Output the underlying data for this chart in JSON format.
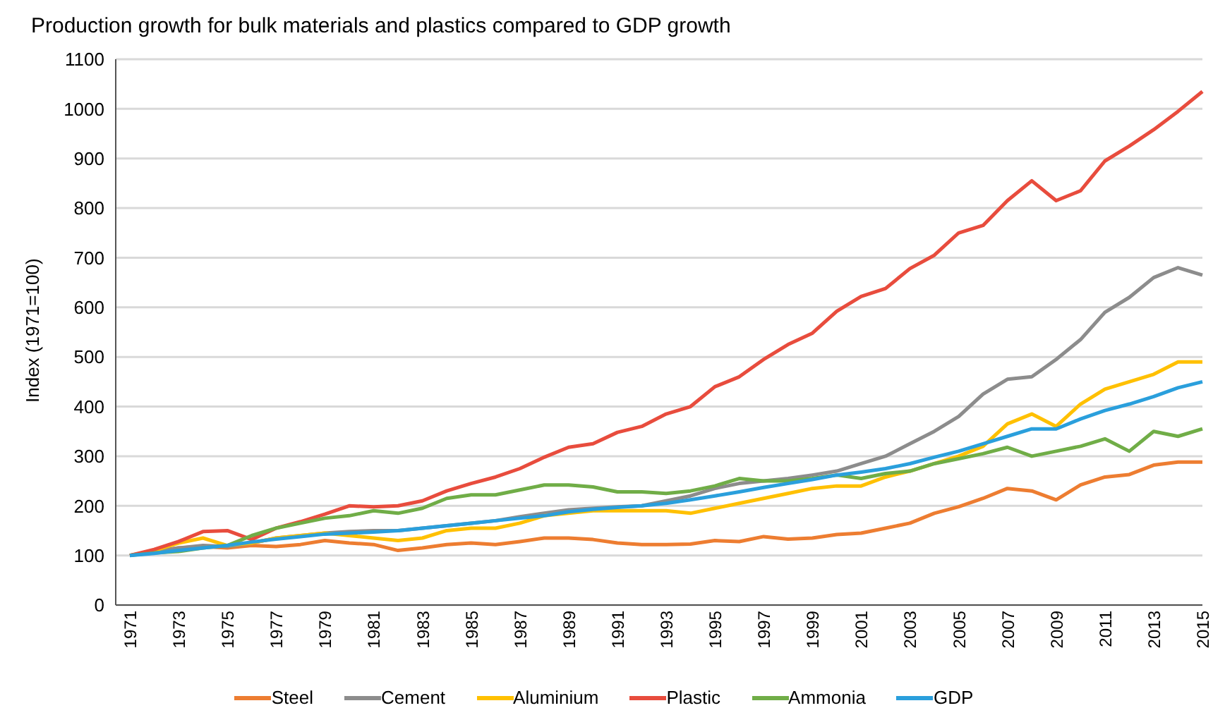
{
  "chart_data": {
    "type": "line",
    "title": "Production growth for bulk materials and plastics compared to GDP growth",
    "ylabel": "Index (1971=100)",
    "categories": [
      "1971",
      null,
      "1973",
      null,
      "1975",
      null,
      "1977",
      null,
      "1979",
      null,
      "1981",
      null,
      "1983",
      null,
      "1985",
      null,
      "1987",
      null,
      "1989",
      null,
      "1991",
      null,
      "1993",
      null,
      "1995",
      null,
      "1997",
      null,
      "1999",
      null,
      "2001",
      null,
      "2003",
      null,
      "2005",
      null,
      "2007",
      null,
      "2009",
      null,
      "2011",
      null,
      "2013",
      null,
      "2015"
    ],
    "ylim": [
      0,
      1100
    ],
    "yticks": [
      0,
      100,
      200,
      300,
      400,
      500,
      600,
      700,
      800,
      900,
      1000,
      1100
    ],
    "grid": "y",
    "legend": "bottom",
    "marker": "none",
    "line_style": "solid",
    "series": [
      {
        "name": "Steel",
        "color": "#ed7d31",
        "values": [
          100,
          108,
          115,
          118,
          115,
          120,
          118,
          122,
          130,
          125,
          122,
          110,
          115,
          122,
          125,
          122,
          128,
          135,
          135,
          132,
          125,
          122,
          122,
          123,
          130,
          128,
          138,
          133,
          135,
          142,
          145,
          155,
          165,
          185,
          198,
          215,
          235,
          230,
          212,
          242,
          258,
          263,
          282,
          288,
          288
        ]
      },
      {
        "name": "Cement",
        "color": "#8c8c8c",
        "values": [
          100,
          108,
          115,
          120,
          118,
          125,
          135,
          140,
          145,
          148,
          150,
          150,
          155,
          160,
          165,
          170,
          178,
          185,
          192,
          195,
          198,
          200,
          210,
          220,
          235,
          245,
          250,
          255,
          262,
          270,
          285,
          300,
          325,
          350,
          380,
          425,
          455,
          460,
          495,
          535,
          590,
          620,
          660,
          680,
          665
        ]
      },
      {
        "name": "Aluminium",
        "color": "#ffc000",
        "values": [
          100,
          110,
          125,
          135,
          120,
          125,
          135,
          140,
          145,
          140,
          135,
          130,
          135,
          150,
          155,
          155,
          165,
          180,
          185,
          190,
          190,
          190,
          190,
          185,
          195,
          205,
          215,
          225,
          235,
          240,
          240,
          258,
          270,
          285,
          300,
          320,
          365,
          385,
          360,
          405,
          435,
          450,
          465,
          490,
          490
        ]
      },
      {
        "name": "Plastic",
        "color": "#e84c3d",
        "values": [
          100,
          112,
          128,
          148,
          150,
          132,
          155,
          168,
          183,
          200,
          198,
          200,
          210,
          230,
          245,
          258,
          275,
          298,
          318,
          325,
          348,
          360,
          385,
          400,
          440,
          460,
          495,
          525,
          548,
          592,
          622,
          638,
          678,
          705,
          750,
          765,
          815,
          855,
          815,
          835,
          895,
          925,
          958,
          995,
          1035
        ]
      },
      {
        "name": "Ammonia",
        "color": "#70ad47",
        "values": [
          100,
          105,
          108,
          115,
          120,
          140,
          155,
          165,
          175,
          180,
          190,
          185,
          195,
          215,
          222,
          222,
          232,
          242,
          242,
          238,
          228,
          228,
          225,
          230,
          240,
          255,
          250,
          250,
          255,
          262,
          255,
          265,
          270,
          285,
          295,
          305,
          318,
          300,
          310,
          320,
          335,
          310,
          350,
          340,
          355
        ]
      },
      {
        "name": "GDP",
        "color": "#2a9fdc",
        "values": [
          100,
          104,
          110,
          115,
          120,
          127,
          133,
          138,
          143,
          145,
          147,
          150,
          155,
          160,
          165,
          170,
          175,
          180,
          188,
          193,
          197,
          200,
          205,
          212,
          220,
          228,
          237,
          245,
          253,
          262,
          268,
          275,
          285,
          298,
          310,
          325,
          340,
          355,
          355,
          375,
          392,
          405,
          420,
          438,
          450
        ]
      }
    ]
  }
}
